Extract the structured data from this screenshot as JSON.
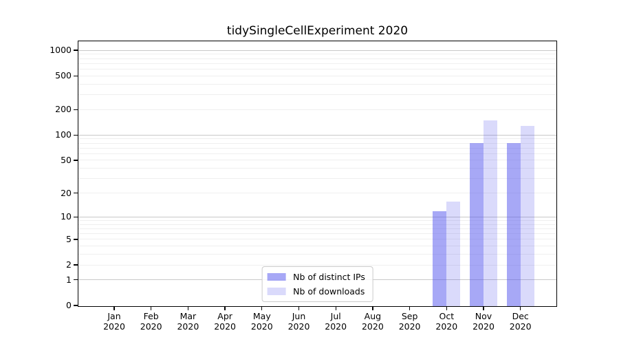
{
  "chart_data": {
    "type": "bar",
    "title": "tidySingleCellExperiment 2020",
    "x_year": "2020",
    "categories": [
      "Jan",
      "Feb",
      "Mar",
      "Apr",
      "May",
      "Jun",
      "Jul",
      "Aug",
      "Sep",
      "Oct",
      "Nov",
      "Dec"
    ],
    "series": [
      {
        "name": "Nb of distinct IPs",
        "color": "rgba(80,82,238,0.5)",
        "values": [
          0,
          0,
          0,
          0,
          0,
          0,
          0,
          0,
          0,
          12,
          82,
          81
        ]
      },
      {
        "name": "Nb of downloads",
        "color": "rgba(80,82,238,0.21)",
        "values": [
          0,
          0,
          0,
          0,
          0,
          0,
          0,
          0,
          0,
          16,
          152,
          132
        ]
      }
    ],
    "y_scale": "log10(1+x)",
    "y_ticks": [
      0,
      1,
      2,
      5,
      10,
      20,
      50,
      100,
      200,
      500,
      1000
    ],
    "y_major_gridlines": [
      1,
      10,
      100,
      1000
    ],
    "y_minor_gridline_decades": [
      1,
      10,
      100
    ],
    "ylim_top_value": 1430,
    "legend_position": "lower center",
    "grid_on": true,
    "colors": {
      "grid_major": "#c8c8c8",
      "grid_minor": "#efefef",
      "axis": "#000000",
      "background": "#ffffff"
    }
  }
}
